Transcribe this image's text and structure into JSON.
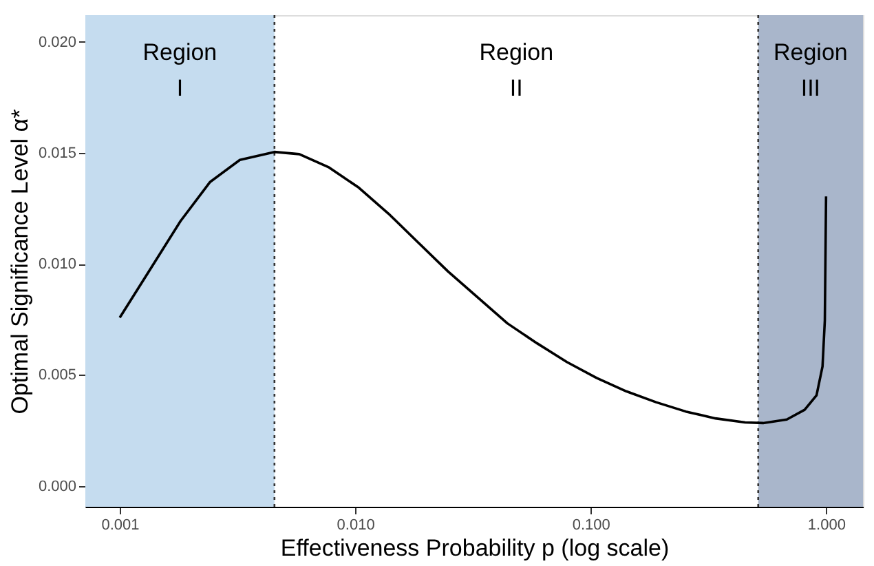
{
  "chart_data": {
    "type": "line",
    "xlabel": "Effectiveness Probability p (log scale)",
    "ylabel": "Optimal Significance Level α*",
    "log": "x",
    "x": [
      0.001,
      0.001353,
      0.00181,
      0.00242,
      0.003237,
      0.00454,
      0.005789,
      0.007743,
      0.01036,
      0.01385,
      0.01852,
      0.02477,
      0.03313,
      0.04431,
      0.05926,
      0.07925,
      0.106,
      0.1417,
      0.1896,
      0.2535,
      0.3391,
      0.4535,
      0.54,
      0.681,
      0.811,
      0.911,
      0.966,
      0.988,
      1.0
    ],
    "series": [
      {
        "color": "#000000",
        "values": [
          0.00758,
          0.00979,
          0.01192,
          0.01369,
          0.01468,
          0.01504,
          0.01494,
          0.01434,
          0.01343,
          0.01226,
          0.01096,
          0.00966,
          0.00849,
          0.00732,
          0.00642,
          0.00558,
          0.00486,
          0.00426,
          0.00377,
          0.00335,
          0.00304,
          0.00286,
          0.00283,
          0.00299,
          0.00343,
          0.00408,
          0.00538,
          0.00745,
          0.01304
        ]
      }
    ],
    "xlim": [
      0.000714,
      1.435
    ],
    "ylim": [
      -0.00094,
      0.0212
    ],
    "xticks": [
      {
        "value": 0.001,
        "label": "0.001"
      },
      {
        "value": 0.01,
        "label": "0.010"
      },
      {
        "value": 0.1,
        "label": "0.100"
      },
      {
        "value": 1,
        "label": "1.000"
      }
    ],
    "yticks": [
      {
        "value": 0,
        "label": "0.000"
      },
      {
        "value": 0.005,
        "label": "0.005"
      },
      {
        "value": 0.01,
        "label": "0.010"
      },
      {
        "value": 0.015,
        "label": "0.015"
      },
      {
        "value": 0.02,
        "label": "0.020"
      }
    ],
    "bands": [
      {
        "axis": "x",
        "from": 0.000714,
        "to": 0.00454,
        "label": "Region I",
        "color": "#c5dcef"
      },
      {
        "axis": "x",
        "from": 0.515,
        "to": 1.435,
        "label": "Region III",
        "color": "#a9b6cb"
      }
    ],
    "ref_lines": [
      {
        "axis": "x",
        "value": 0.00454,
        "color": "#333333",
        "line_style": "dotted"
      },
      {
        "axis": "x",
        "value": 0.515,
        "color": "#333333",
        "line_style": "dotted"
      }
    ],
    "annotations": [
      "Region II"
    ],
    "line_style": "solid",
    "marker": "none"
  }
}
